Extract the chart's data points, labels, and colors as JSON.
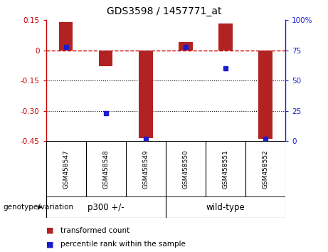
{
  "title": "GDS3598 / 1457771_at",
  "samples": [
    "GSM458547",
    "GSM458548",
    "GSM458549",
    "GSM458550",
    "GSM458551",
    "GSM458552"
  ],
  "red_values": [
    0.142,
    -0.08,
    -0.435,
    0.04,
    0.132,
    -0.44
  ],
  "blue_values_pct": [
    78,
    23,
    2,
    78,
    60,
    2
  ],
  "left_ylim": [
    -0.45,
    0.15
  ],
  "right_ylim": [
    0,
    100
  ],
  "left_yticks": [
    0.15,
    0.0,
    -0.15,
    -0.3,
    -0.45
  ],
  "left_ytick_labels": [
    "0.15",
    "0",
    "-0.15",
    "-0.30",
    "-0.45"
  ],
  "right_yticks": [
    100,
    75,
    50,
    25,
    0
  ],
  "right_ytick_labels": [
    "100%",
    "75",
    "50",
    "25",
    "0"
  ],
  "bar_color": "#B22222",
  "dot_color": "#1C1CCC",
  "hline_color": "#CC0000",
  "grid_color": "#000000",
  "bg_color": "#FFFFFF",
  "legend_red_label": "transformed count",
  "legend_blue_label": "percentile rank within the sample",
  "bar_width": 0.35,
  "genotype_label": "genotype/variation",
  "group1_label": "p300 +/-",
  "group2_label": "wild-type",
  "label_bg": "#CCCCCC",
  "group_bg": "#90EE90"
}
